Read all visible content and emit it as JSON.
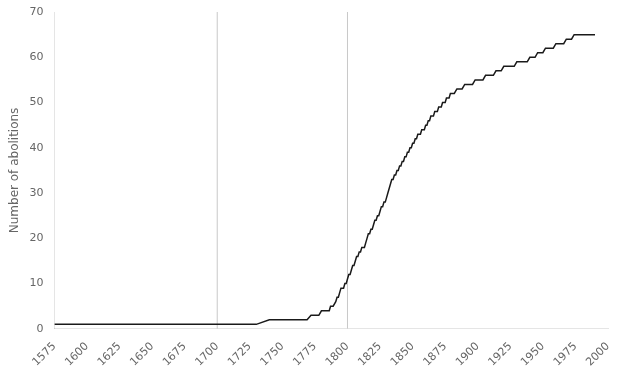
{
  "chart_data": {
    "type": "line",
    "ylabel": "Number of abolitions",
    "x": [
      1575,
      1580,
      1590,
      1600,
      1610,
      1620,
      1630,
      1640,
      1650,
      1660,
      1670,
      1680,
      1690,
      1700,
      1710,
      1720,
      1730,
      1740,
      1750,
      1755,
      1760,
      1763,
      1766,
      1769,
      1772,
      1774,
      1776,
      1778,
      1780,
      1782,
      1784,
      1786,
      1787,
      1788,
      1789,
      1791,
      1792,
      1793,
      1794,
      1795,
      1796,
      1797,
      1798,
      1799,
      1800,
      1801,
      1802,
      1803,
      1804,
      1805,
      1806,
      1807,
      1808,
      1809,
      1810,
      1811,
      1812,
      1813,
      1814,
      1815,
      1816,
      1817,
      1818,
      1819,
      1820,
      1821,
      1822,
      1823,
      1824,
      1825,
      1826,
      1827,
      1828,
      1829,
      1830,
      1831,
      1832,
      1833,
      1834,
      1835,
      1836,
      1837,
      1838,
      1839,
      1840,
      1841,
      1842,
      1843,
      1844,
      1845,
      1846,
      1847,
      1848,
      1849,
      1850,
      1851,
      1852,
      1853,
      1854,
      1855,
      1856,
      1857,
      1858,
      1859,
      1860,
      1861,
      1862,
      1863,
      1864,
      1865,
      1866,
      1867,
      1868,
      1869,
      1870,
      1871,
      1872,
      1873,
      1874,
      1875,
      1876,
      1877,
      1878,
      1879,
      1880,
      1882,
      1884,
      1886,
      1888,
      1890,
      1892,
      1894,
      1896,
      1898,
      1900,
      1902,
      1904,
      1906,
      1908,
      1910,
      1912,
      1914,
      1916,
      1918,
      1920,
      1922,
      1924,
      1926,
      1928,
      1930,
      1932,
      1934,
      1936,
      1938,
      1940,
      1942,
      1944,
      1946,
      1948,
      1950,
      1952,
      1954,
      1956,
      1958,
      1960,
      1962,
      1964,
      1966,
      1968,
      1970,
      1972,
      1974,
      1976,
      1978,
      1980,
      1982,
      1984,
      1986,
      1988,
      1990
    ],
    "values": [
      1,
      1,
      1,
      1,
      1,
      1,
      1,
      1,
      1,
      1,
      1,
      1,
      1,
      1,
      1,
      1,
      1,
      2,
      2,
      2,
      2,
      2,
      2,
      2,
      3,
      3,
      3,
      3,
      4,
      4,
      4,
      4,
      5,
      5,
      5,
      6,
      7,
      7,
      8,
      9,
      9,
      9,
      10,
      10,
      11,
      12,
      12,
      13,
      14,
      14,
      15,
      16,
      16,
      17,
      17,
      18,
      18,
      18,
      19,
      20,
      21,
      21,
      22,
      22,
      23,
      24,
      24,
      25,
      25,
      26,
      27,
      27,
      28,
      28,
      29,
      30,
      31,
      32,
      33,
      33,
      34,
      34,
      35,
      35,
      36,
      36,
      37,
      37,
      38,
      38,
      39,
      39,
      40,
      40,
      41,
      41,
      42,
      42,
      43,
      43,
      43,
      44,
      44,
      44,
      45,
      45,
      46,
      46,
      47,
      47,
      47,
      48,
      48,
      48,
      49,
      49,
      49,
      50,
      50,
      50,
      51,
      51,
      51,
      52,
      52,
      52,
      53,
      53,
      53,
      54,
      54,
      54,
      54,
      55,
      55,
      55,
      55,
      56,
      56,
      56,
      56,
      57,
      57,
      57,
      58,
      58,
      58,
      58,
      58,
      59,
      59,
      59,
      59,
      59,
      60,
      60,
      60,
      61,
      61,
      61,
      62,
      62,
      62,
      62,
      63,
      63,
      63,
      63,
      64,
      64,
      64,
      65,
      65,
      65,
      65,
      65,
      65,
      65,
      65,
      65
    ],
    "color": "#1a1a1a",
    "vlines": {
      "x": [
        1700,
        1800
      ],
      "color": "#c8c8c8"
    },
    "xlim": [
      1575,
      2000
    ],
    "ylim": [
      0,
      70
    ],
    "xticks": [
      1575,
      1600,
      1625,
      1650,
      1675,
      1700,
      1725,
      1750,
      1775,
      1800,
      1825,
      1850,
      1875,
      1900,
      1925,
      1950,
      1975,
      2000
    ],
    "yticks": [
      0,
      10,
      20,
      30,
      40,
      50,
      60,
      70
    ],
    "grid": false
  }
}
